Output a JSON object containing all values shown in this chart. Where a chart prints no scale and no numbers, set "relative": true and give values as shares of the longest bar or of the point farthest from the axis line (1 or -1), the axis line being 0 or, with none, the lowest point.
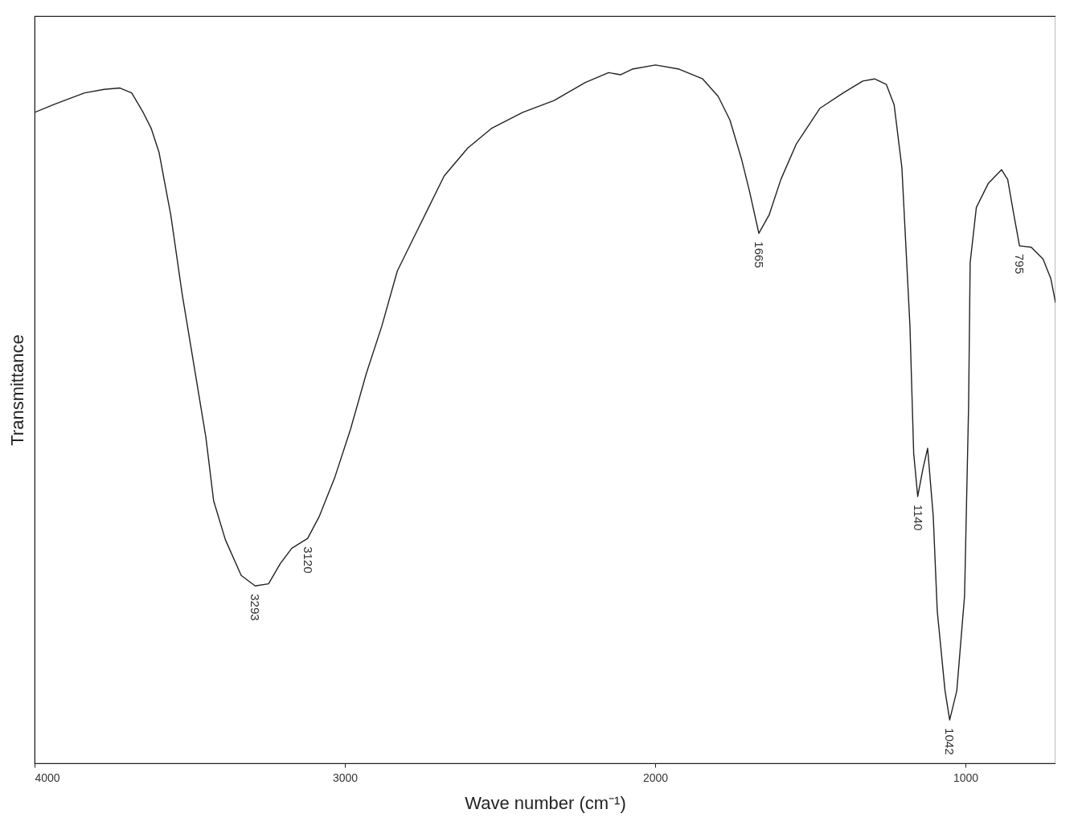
{
  "chart_data": {
    "type": "line",
    "relative": true,
    "xlabel": "Wave number (cm⁻¹)",
    "ylabel": "Transmittance",
    "xlim": [
      4000,
      710
    ],
    "xticks": [
      4000,
      3000,
      2000,
      1000
    ],
    "grid": false,
    "legend": false,
    "marker": "none",
    "line_style": "solid",
    "series": [
      {
        "color": "#222222",
        "x": [
          4000,
          3940,
          3839,
          3776,
          3725,
          3687,
          3650,
          3624,
          3599,
          3561,
          3524,
          3486,
          3448,
          3423,
          3385,
          3334,
          3289,
          3246,
          3208,
          3171,
          3120,
          3082,
          3032,
          2982,
          2931,
          2881,
          2831,
          2780,
          2730,
          2680,
          2604,
          2528,
          2427,
          2326,
          2225,
          2150,
          2112,
          2074,
          1999,
          1923,
          1847,
          1797,
          1759,
          1721,
          1696,
          1666,
          1633,
          1595,
          1545,
          1469,
          1394,
          1331,
          1293,
          1255,
          1230,
          1205,
          1179,
          1167,
          1154,
          1137,
          1122,
          1104,
          1091,
          1066,
          1051,
          1028,
          1003,
          990,
          985,
          965,
          927,
          884,
          864,
          844,
          826,
          788,
          750,
          725,
          710
        ],
        "values": [
          0.932,
          0.943,
          0.96,
          0.965,
          0.967,
          0.96,
          0.932,
          0.909,
          0.875,
          0.785,
          0.671,
          0.569,
          0.467,
          0.376,
          0.32,
          0.269,
          0.254,
          0.257,
          0.286,
          0.308,
          0.322,
          0.354,
          0.41,
          0.478,
          0.558,
          0.626,
          0.705,
          0.751,
          0.796,
          0.841,
          0.881,
          0.909,
          0.932,
          0.949,
          0.975,
          0.989,
          0.986,
          0.994,
          1.0,
          0.994,
          0.98,
          0.955,
          0.921,
          0.864,
          0.819,
          0.759,
          0.785,
          0.836,
          0.887,
          0.938,
          0.96,
          0.977,
          0.98,
          0.972,
          0.943,
          0.853,
          0.626,
          0.444,
          0.382,
          0.422,
          0.451,
          0.354,
          0.218,
          0.104,
          0.062,
          0.104,
          0.24,
          0.512,
          0.717,
          0.796,
          0.83,
          0.85,
          0.836,
          0.785,
          0.741,
          0.739,
          0.722,
          0.694,
          0.66
        ]
      }
    ],
    "annotations": [
      {
        "text": "3293",
        "x": 3289,
        "y": 0.254
      },
      {
        "text": "3120",
        "x": 3120,
        "y": 0.322
      },
      {
        "text": "1665",
        "x": 1666,
        "y": 0.759
      },
      {
        "text": "1140",
        "x": 1154,
        "y": 0.382
      },
      {
        "text": "1042",
        "x": 1051,
        "y": 0.062
      },
      {
        "text": "795",
        "x": 826,
        "y": 0.741
      }
    ]
  }
}
